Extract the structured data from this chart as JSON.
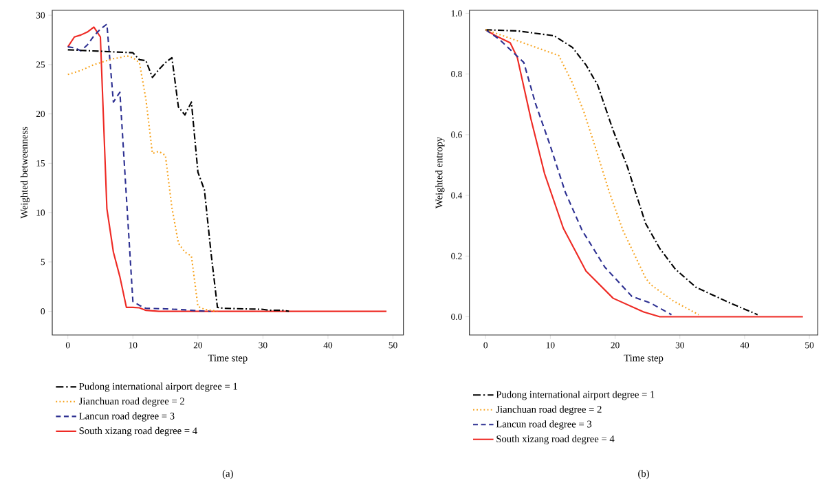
{
  "chart_data": [
    {
      "type": "line",
      "xlabel": "Time step",
      "ylabel": "Weighted betweenness",
      "xlim": [
        -2.4,
        51.6
      ],
      "ylim": [
        -2.4,
        30.5
      ],
      "xticks": [
        0,
        10,
        20,
        30,
        40,
        50
      ],
      "yticks": [
        0,
        5,
        10,
        15,
        20,
        25,
        30
      ],
      "legend": "bottom",
      "annotations": [
        "(a)"
      ],
      "series": [
        {
          "name": "Pudong international airport degree = 1",
          "color": "#000000",
          "line_style": "dashdot",
          "x": [
            0,
            10,
            11,
            12,
            13,
            14,
            15,
            16,
            17,
            18,
            19,
            20,
            21,
            22,
            23,
            24,
            30,
            31,
            33,
            34
          ],
          "values": [
            26.5,
            26.2,
            25.5,
            25.4,
            23.7,
            24.5,
            25.2,
            25.7,
            20.7,
            19.9,
            21.2,
            14.1,
            12.3,
            6.0,
            0.4,
            0.3,
            0.2,
            0.1,
            0.1,
            0
          ]
        },
        {
          "name": "Jianchuan road degree = 2",
          "color": "#f7a21b",
          "line_style": "dotted",
          "x": [
            0,
            1,
            2,
            3,
            4,
            5,
            6,
            7,
            8,
            9,
            10,
            11,
            12,
            13,
            14,
            15,
            16,
            17,
            18,
            19,
            20,
            21,
            22,
            23
          ],
          "values": [
            24.0,
            24.2,
            24.4,
            24.7,
            25.0,
            25.2,
            25.4,
            25.6,
            25.7,
            25.9,
            25.7,
            25.2,
            21.5,
            16.0,
            16.2,
            15.8,
            10.5,
            6.9,
            6.0,
            5.6,
            0.5,
            0.2,
            0.1,
            0
          ]
        },
        {
          "name": "Lancun road degree = 3",
          "color": "#2e3192",
          "line_style": "dashed",
          "x": [
            0,
            1,
            2,
            3,
            4,
            5,
            6,
            7,
            8,
            9,
            10,
            11,
            12,
            15,
            18,
            20,
            22
          ],
          "values": [
            26.8,
            26.7,
            26.4,
            27.0,
            27.9,
            28.6,
            29.1,
            21.2,
            22.2,
            11.6,
            1.0,
            0.6,
            0.3,
            0.25,
            0.15,
            0.05,
            0
          ]
        },
        {
          "name": "South xizang road degree = 4",
          "color": "#ee2a24",
          "line_style": "solid",
          "x": [
            0,
            1,
            2,
            3,
            4,
            5,
            6,
            7,
            8,
            9,
            10,
            11,
            12,
            14,
            49
          ],
          "values": [
            26.8,
            27.8,
            28.0,
            28.3,
            28.8,
            27.8,
            10.4,
            6.0,
            3.5,
            0.4,
            0.4,
            0.35,
            0.1,
            0,
            0
          ]
        }
      ]
    },
    {
      "type": "line",
      "xlabel": "Time step",
      "ylabel": "Weighted entropy",
      "xlim": [
        -2.5,
        51.3
      ],
      "ylim": [
        -0.06,
        1.01
      ],
      "xticks": [
        0,
        10,
        20,
        30,
        40,
        50
      ],
      "yticks": [
        {
          "value": 0,
          "label": "0.0"
        },
        0.2,
        0.4,
        0.6,
        0.8,
        {
          "value": 1,
          "label": "1.0"
        }
      ],
      "legend": "bottom",
      "annotations": [
        "(b)"
      ],
      "series": [
        {
          "name": "Pudong international airport degree = 1",
          "color": "#000000",
          "line_style": "dashdot",
          "x": [
            0,
            5,
            10.6,
            13.4,
            15.5,
            17.3,
            19.7,
            21.9,
            24.7,
            26.9,
            29.3,
            32.5,
            37.8,
            42
          ],
          "values": [
            0.946,
            0.942,
            0.926,
            0.888,
            0.83,
            0.764,
            0.614,
            0.494,
            0.308,
            0.225,
            0.157,
            0.097,
            0.045,
            0.007
          ]
        },
        {
          "name": "Jianchuan road degree = 2",
          "color": "#f7a21b",
          "line_style": "dotted",
          "x": [
            0,
            4.2,
            11.3,
            13.4,
            15.2,
            17,
            19.1,
            21.2,
            24.7,
            25.5,
            29,
            32.9
          ],
          "values": [
            0.946,
            0.915,
            0.861,
            0.771,
            0.674,
            0.555,
            0.411,
            0.285,
            0.128,
            0.106,
            0.052,
            0.007
          ]
        },
        {
          "name": "Lancun road degree = 3",
          "color": "#2e3192",
          "line_style": "dashed",
          "x": [
            0,
            2.1,
            5.9,
            7.7,
            9.9,
            12.3,
            14.9,
            18.4,
            22.6,
            25.5,
            28.7
          ],
          "values": [
            0.946,
            0.915,
            0.838,
            0.703,
            0.569,
            0.411,
            0.285,
            0.164,
            0.067,
            0.045,
            0.007
          ]
        },
        {
          "name": "South xizang road degree = 4",
          "color": "#ee2a24",
          "line_style": "solid",
          "x": [
            0,
            1.4,
            3.8,
            4.9,
            7,
            9.1,
            12,
            15.5,
            19.7,
            24.4,
            26.9,
            49
          ],
          "values": [
            0.946,
            0.928,
            0.903,
            0.854,
            0.652,
            0.472,
            0.292,
            0.151,
            0.061,
            0.016,
            0,
            0
          ]
        }
      ]
    }
  ]
}
